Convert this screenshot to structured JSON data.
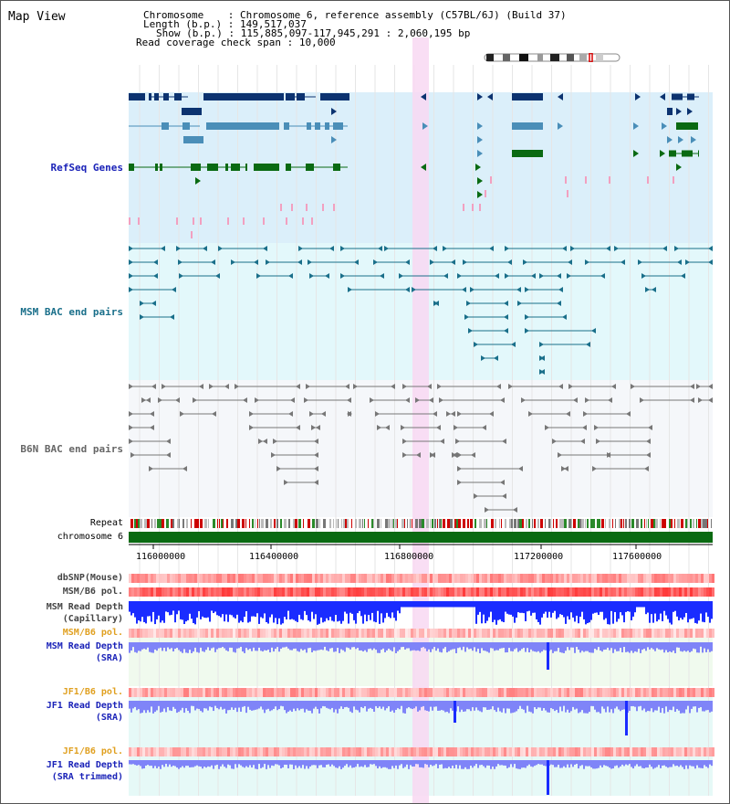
{
  "header": {
    "title": "Map View",
    "chromosome_key": "Chromosome    ",
    "chromosome_value": "Chromosome 6, reference assembly (C57BL/6J) (Build 37)",
    "length_key": "Length (b.p.)",
    "length_value": "149,517,037",
    "show_key": "Show (b.p.)",
    "show_value": "115,885,097-117,945,291 : 2,060,195 bp",
    "coverage_key": "Read coverage check span",
    "coverage_value": "10,000"
  },
  "tracks": {
    "refseq": "RefSeq Genes",
    "msm_bac": "MSM BAC end pairs",
    "b6n_bac": "B6N BAC end pairs",
    "repeat": "Repeat",
    "chromosome": "chromosome 6",
    "dbsnp": "dbSNP(Mouse)",
    "msm_b6_pol_1": "MSM/B6 pol.",
    "msm_read_depth_cap_1": "MSM Read Depth",
    "msm_read_depth_cap_2": "(Capillary)",
    "msm_b6_pol_2": "MSM/B6 pol.",
    "msm_read_depth_sra_1": "MSM Read Depth",
    "msm_read_depth_sra_2": "(SRA)",
    "jf1_b6_pol_1": "JF1/B6 pol.",
    "jf1_read_depth_sra_1": "JF1 Read Depth",
    "jf1_read_depth_sra_2": "(SRA)",
    "jf1_b6_pol_2": "JF1/B6 pol.",
    "jf1_read_depth_trim_1": "JF1 Read Depth",
    "jf1_read_depth_trim_2": "(SRA trimmed)"
  },
  "axis": {
    "ticks": [
      "116000000",
      "116400000",
      "116800000",
      "117200000",
      "117600000"
    ]
  },
  "colors": {
    "refseq_bg": "#dbeffa",
    "msm_bac_bg": "#e3f8fb",
    "b6n_bac_bg": "#f5f7fa",
    "highlight": "#f8d8f2",
    "gene_dark": "#0c3370",
    "gene_mid": "#4a8eb8",
    "gene_green": "#0a6a12",
    "gene_pink": "#f2a0c0",
    "bac_msm": "#1a6f8a",
    "bac_b6n": "#777777",
    "depth_blue": "#1a2cff",
    "depth_light": "#7f84f8",
    "label_blue": "#1a22b8",
    "label_orange": "#e0a020"
  }
}
